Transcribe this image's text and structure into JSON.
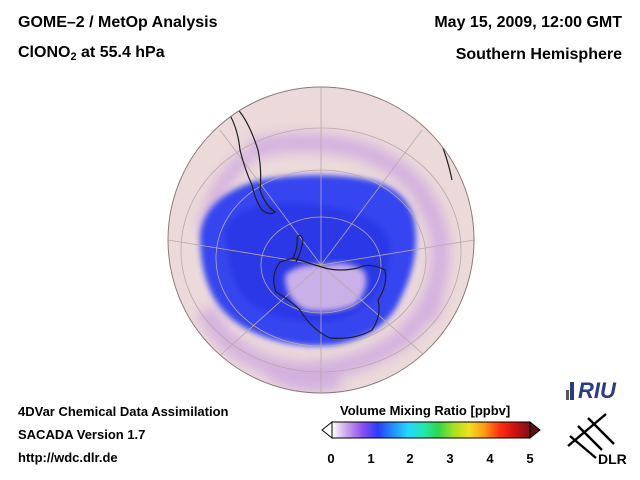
{
  "header": {
    "left_line1": "GOME–2 / MetOp Analysis",
    "left_line2_pre": "ClONO",
    "left_line2_sub": "2",
    "left_line2_post": " at 55.4 hPa",
    "right_line1": "May 15, 2009, 12:00 GMT",
    "right_line2": "Southern Hemisphere"
  },
  "footer": {
    "line1": "4DVar Chemical Data Assimilation",
    "line2": "SACADA Version 1.7",
    "line3": "http://wdc.dlr.de"
  },
  "colorbar": {
    "label": "Volume Mixing Ratio [ppbv]",
    "ticks": [
      "0",
      "1",
      "2",
      "3",
      "4",
      "5"
    ],
    "min": 0,
    "max": 5,
    "colors": [
      "#ffffff",
      "#c8a0e8",
      "#8a4ff0",
      "#2a3cff",
      "#1e90ff",
      "#22d8ff",
      "#20e8b0",
      "#2ed84a",
      "#a8e020",
      "#f0e020",
      "#ff9a10",
      "#ff3010",
      "#d01010",
      "#7a1018"
    ]
  },
  "logos": {
    "riu": "RIU",
    "dlr": "DLR"
  },
  "map": {
    "projection": "orthographic",
    "hemisphere": "south",
    "background_color": "#ecdada",
    "low_color": "#2f3ef0",
    "mid_color": "#c8a8e8"
  }
}
